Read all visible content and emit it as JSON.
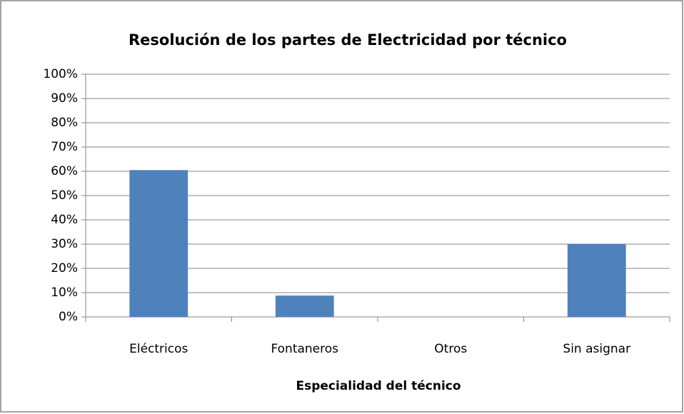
{
  "chart_data": {
    "type": "bar",
    "title": "Resolución de los partes de Electricidad por técnico",
    "x_label": "Especialidad del técnico",
    "categories": [
      "Eléctricos",
      "Fontaneros",
      "Otros",
      "Sin asignar"
    ],
    "values": [
      60.5,
      8.8,
      0,
      30
    ],
    "color": "#4f81bd",
    "ylim": [
      0,
      100
    ],
    "yticks": [
      {
        "value": 0,
        "label": "0%"
      },
      {
        "value": 10,
        "label": "10%"
      },
      {
        "value": 20,
        "label": "20%"
      },
      {
        "value": 30,
        "label": "30%"
      },
      {
        "value": 40,
        "label": "40%"
      },
      {
        "value": 50,
        "label": "50%"
      },
      {
        "value": 60,
        "label": "60%"
      },
      {
        "value": 70,
        "label": "70%"
      },
      {
        "value": 80,
        "label": "80%"
      },
      {
        "value": 90,
        "label": "90%"
      },
      {
        "value": 100,
        "label": "100%"
      }
    ],
    "grid": true
  }
}
